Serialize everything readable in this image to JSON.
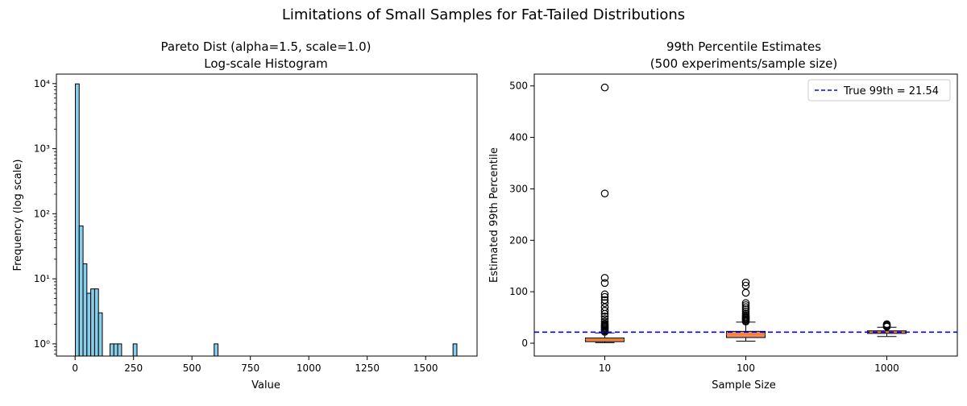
{
  "figure": {
    "suptitle": "Limitations of Small Samples for Fat-Tailed Distributions"
  },
  "chart_data": [
    {
      "type": "bar",
      "title": "Pareto Dist (alpha=1.5, scale=1.0)",
      "subtitle": "Log-scale Histogram",
      "xlabel": "Value",
      "ylabel": "Frequency (log scale)",
      "yscale": "log",
      "xlim": [
        -80,
        1720
      ],
      "ylim": [
        0.65,
        14000
      ],
      "x_ticks": [
        0,
        250,
        500,
        750,
        1000,
        1250,
        1500
      ],
      "x_tick_labels": [
        "0",
        "250",
        "500",
        "750",
        "1000",
        "1250",
        "1500"
      ],
      "y_ticks": [
        1,
        10,
        100,
        1000,
        10000
      ],
      "y_tick_labels": [
        "10⁰",
        "10¹",
        "10²",
        "10³",
        "10⁴"
      ],
      "bin_width": 16.5,
      "bins": [
        {
          "x0": 1,
          "count": 9900
        },
        {
          "x0": 17.5,
          "count": 65
        },
        {
          "x0": 34,
          "count": 17
        },
        {
          "x0": 50.5,
          "count": 6
        },
        {
          "x0": 67,
          "count": 7
        },
        {
          "x0": 83.5,
          "count": 7
        },
        {
          "x0": 100,
          "count": 3
        },
        {
          "x0": 149.5,
          "count": 1
        },
        {
          "x0": 166,
          "count": 1
        },
        {
          "x0": 182.5,
          "count": 1
        },
        {
          "x0": 248.5,
          "count": 1
        },
        {
          "x0": 595,
          "count": 1
        },
        {
          "x0": 1617,
          "count": 1
        }
      ],
      "colors": {
        "bar_fill": "#87ceeb",
        "bar_edge": "#000000"
      },
      "grid": false
    },
    {
      "type": "box",
      "title": "99th Percentile Estimates",
      "subtitle": "(500 experiments/sample size)",
      "xlabel": "Sample Size",
      "ylabel": "Estimated 99th Percentile",
      "ylim": [
        -25,
        523
      ],
      "y_ticks": [
        0,
        100,
        200,
        300,
        400,
        500
      ],
      "y_tick_labels": [
        "0",
        "100",
        "200",
        "300",
        "400",
        "500"
      ],
      "categories": [
        "10",
        "100",
        "1000"
      ],
      "boxes": [
        {
          "q1": 3,
          "median": 7,
          "q3": 10,
          "whisker_low": 1,
          "whisker_high": 20,
          "outliers": [
            22,
            24,
            26,
            28,
            30,
            32,
            34,
            36,
            38,
            42,
            47,
            52,
            57,
            63,
            70,
            78,
            84,
            90,
            95,
            117,
            127,
            291,
            497
          ]
        },
        {
          "q1": 11,
          "median": 17,
          "q3": 23,
          "whisker_low": 4,
          "whisker_high": 41,
          "outliers": [
            42,
            44,
            46,
            48,
            50,
            52,
            55,
            58,
            62,
            66,
            70,
            74,
            78,
            98,
            112,
            118
          ]
        },
        {
          "q1": 19,
          "median": 21.5,
          "q3": 24,
          "whisker_low": 13,
          "whisker_high": 31,
          "outliers": [
            32,
            34,
            36,
            37
          ]
        }
      ],
      "reference_line": {
        "value": 21.54,
        "label": "True 99th = 21.54",
        "color": "#0000ff",
        "style": "dashed"
      },
      "legend": {
        "position": "top-right"
      },
      "colors": {
        "box_fill": "#f08b68",
        "median": "#ff7f0e",
        "outlier_edge": "#000000"
      },
      "grid": false
    }
  ]
}
